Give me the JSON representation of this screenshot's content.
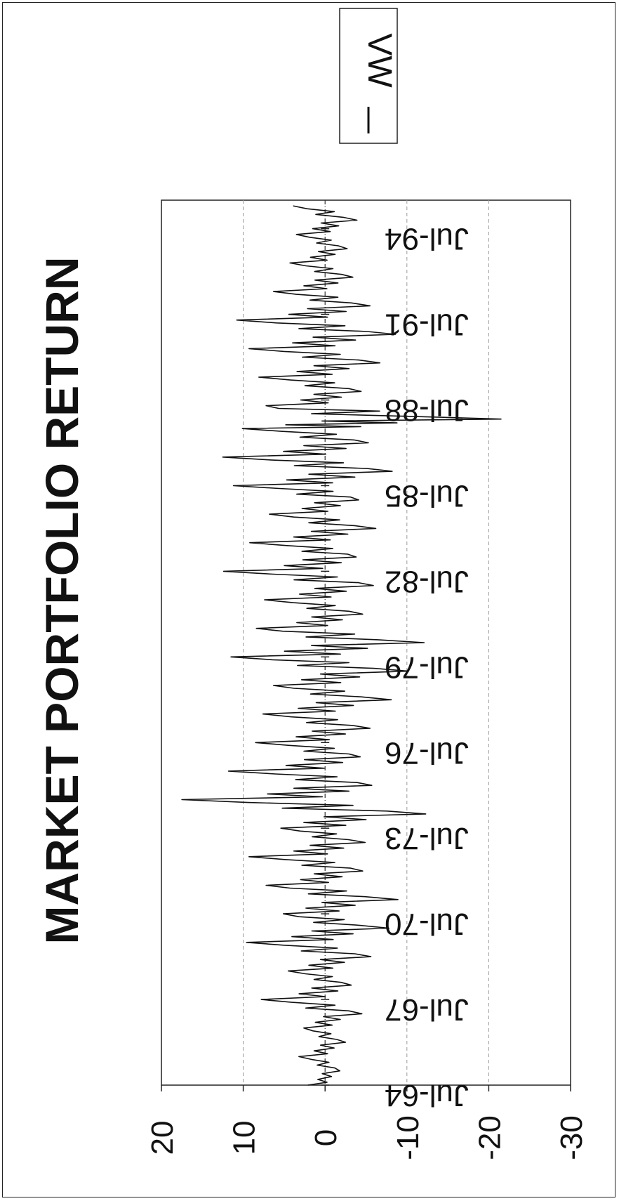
{
  "chart_data": {
    "type": "line",
    "title": "MARKET PORTFOLIO RETURN",
    "xlabel": "",
    "ylabel": "",
    "ylim": [
      -30,
      20
    ],
    "yticks": [
      "20",
      "10",
      "0",
      "-10",
      "-20",
      "-30"
    ],
    "ytick_values": [
      20,
      10,
      0,
      -10,
      -20,
      -30
    ],
    "xticks": [
      "Jul-64",
      "Jul-67",
      "Jul-70",
      "Jul-73",
      "Jul-76",
      "Jul-79",
      "Jul-82",
      "Jul-85",
      "Jul-88",
      "Jul-91",
      "Jul-94"
    ],
    "xtick_years": [
      1964.5,
      1967.5,
      1970.5,
      1973.5,
      1976.5,
      1979.5,
      1982.5,
      1985.5,
      1988.5,
      1991.5,
      1994.5
    ],
    "xlim": [
      1964.5,
      1995.5
    ],
    "grid": true,
    "legend_position": "top-right",
    "orientation": "rotated-90",
    "series": [
      {
        "name": "VW",
        "color": "#111111",
        "points": [
          [
            1964.5,
            2.1
          ],
          [
            1965.0,
            -1.8
          ],
          [
            1965.5,
            3.2
          ],
          [
            1966.0,
            -2.5
          ],
          [
            1966.5,
            2.6
          ],
          [
            1967.0,
            -4.5
          ],
          [
            1967.5,
            7.8
          ],
          [
            1968.0,
            -3.2
          ],
          [
            1968.5,
            4.5
          ],
          [
            1969.0,
            -5.6
          ],
          [
            1969.5,
            9.6
          ],
          [
            1970.0,
            -7.8
          ],
          [
            1970.5,
            5.1
          ],
          [
            1971.0,
            -8.9
          ],
          [
            1971.5,
            7.2
          ],
          [
            1972.0,
            -4.6
          ],
          [
            1972.5,
            9.3
          ],
          [
            1973.0,
            -4.9
          ],
          [
            1973.5,
            5.4
          ],
          [
            1974.0,
            -12.3
          ],
          [
            1974.5,
            17.5
          ],
          [
            1975.0,
            -5.7
          ],
          [
            1975.5,
            11.8
          ],
          [
            1976.0,
            -4.3
          ],
          [
            1976.5,
            8.5
          ],
          [
            1977.0,
            -5.5
          ],
          [
            1977.5,
            7.6
          ],
          [
            1978.0,
            -8.1
          ],
          [
            1978.5,
            6.3
          ],
          [
            1979.0,
            -10.2
          ],
          [
            1979.5,
            11.5
          ],
          [
            1980.0,
            -12.1
          ],
          [
            1980.5,
            8.4
          ],
          [
            1981.0,
            -4.6
          ],
          [
            1981.5,
            7.4
          ],
          [
            1982.0,
            -5.9
          ],
          [
            1982.5,
            12.4
          ],
          [
            1983.0,
            -3.8
          ],
          [
            1983.5,
            9.2
          ],
          [
            1984.0,
            -6.2
          ],
          [
            1984.5,
            6.8
          ],
          [
            1985.0,
            -4.1
          ],
          [
            1985.5,
            11.2
          ],
          [
            1986.0,
            -8.2
          ],
          [
            1986.5,
            12.5
          ],
          [
            1987.0,
            -5.3
          ],
          [
            1987.5,
            10.1
          ],
          [
            1987.83,
            -21.5
          ],
          [
            1988.3,
            7.2
          ],
          [
            1988.8,
            -4.4
          ],
          [
            1989.3,
            8.1
          ],
          [
            1989.8,
            -6.7
          ],
          [
            1990.3,
            9.3
          ],
          [
            1990.8,
            -8.6
          ],
          [
            1991.3,
            10.8
          ],
          [
            1991.8,
            -5.5
          ],
          [
            1992.3,
            6.3
          ],
          [
            1992.8,
            -3.4
          ],
          [
            1993.3,
            4.3
          ],
          [
            1993.8,
            -2.7
          ],
          [
            1994.3,
            3.5
          ],
          [
            1994.8,
            -3.9
          ],
          [
            1995.3,
            3.9
          ]
        ]
      }
    ]
  }
}
